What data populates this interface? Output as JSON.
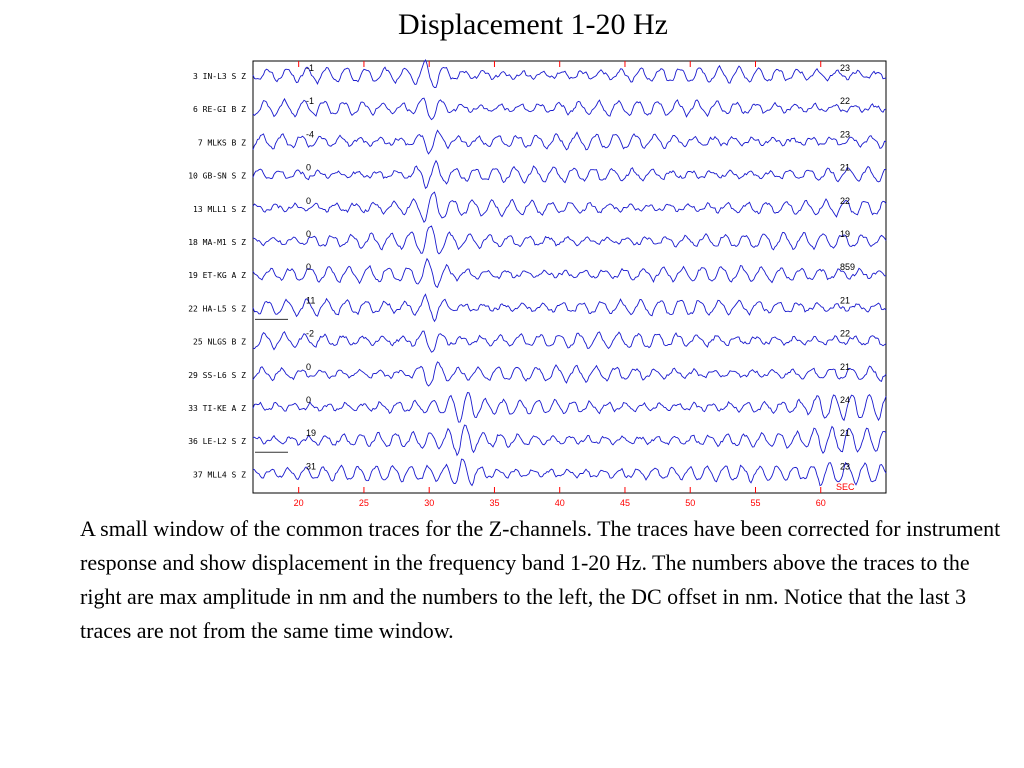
{
  "slide": {
    "title": "Displacement 1-20 Hz",
    "caption": "A small window of the common traces for the Z-channels. The traces have been corrected for instrument response and show displacement in the frequency band 1-20 Hz. The numbers above the traces to the right are max amplitude in nm and the numbers to the left, the DC offset in nm. Notice that the last 3 traces are not from the same time window."
  },
  "colors": {
    "trace": "#1a1acd",
    "axis": "#000000",
    "tick": "#ff0000",
    "label": "#000000"
  },
  "chart_data": {
    "type": "line",
    "title": "",
    "xlabel": "SEC",
    "xlim": [
      16.5,
      65
    ],
    "xticks": [
      20,
      25,
      30,
      35,
      40,
      45,
      50,
      55,
      60
    ],
    "grid": false,
    "traces": [
      {
        "number": "3",
        "station": "IN-L3",
        "inst": "S",
        "comp": "Z",
        "dc_offset": "-1",
        "max_amp": "23"
      },
      {
        "number": "6",
        "station": "RE-GI",
        "inst": "B",
        "comp": "Z",
        "dc_offset": "-1",
        "max_amp": "22"
      },
      {
        "number": "7",
        "station": "MLKS",
        "inst": "B",
        "comp": "Z",
        "dc_offset": "-4",
        "max_amp": "23"
      },
      {
        "number": "10",
        "station": "GB-SN",
        "inst": "S",
        "comp": "Z",
        "dc_offset": "0",
        "max_amp": "21"
      },
      {
        "number": "13",
        "station": "MLL1",
        "inst": "S",
        "comp": "Z",
        "dc_offset": "0",
        "max_amp": "22"
      },
      {
        "number": "18",
        "station": "MA-M1",
        "inst": "S",
        "comp": "Z",
        "dc_offset": "0",
        "max_amp": "19"
      },
      {
        "number": "19",
        "station": "ET-KG",
        "inst": "A",
        "comp": "Z",
        "dc_offset": "0",
        "max_amp": "859"
      },
      {
        "number": "22",
        "station": "HA-L5",
        "inst": "S",
        "comp": "Z",
        "dc_offset": "11",
        "max_amp": "21"
      },
      {
        "number": "25",
        "station": "NLGS",
        "inst": "B",
        "comp": "Z",
        "dc_offset": "-2",
        "max_amp": "22"
      },
      {
        "number": "29",
        "station": "SS-L6",
        "inst": "S",
        "comp": "Z",
        "dc_offset": "0",
        "max_amp": "21"
      },
      {
        "number": "33",
        "station": "TI-KE",
        "inst": "A",
        "comp": "Z",
        "dc_offset": "0",
        "max_amp": "24"
      },
      {
        "number": "36",
        "station": "LE-L2",
        "inst": "S",
        "comp": "Z",
        "dc_offset": "19",
        "max_amp": "21"
      },
      {
        "number": "37",
        "station": "MLL4",
        "inst": "S",
        "comp": "Z",
        "dc_offset": "31",
        "max_amp": "23"
      }
    ]
  }
}
